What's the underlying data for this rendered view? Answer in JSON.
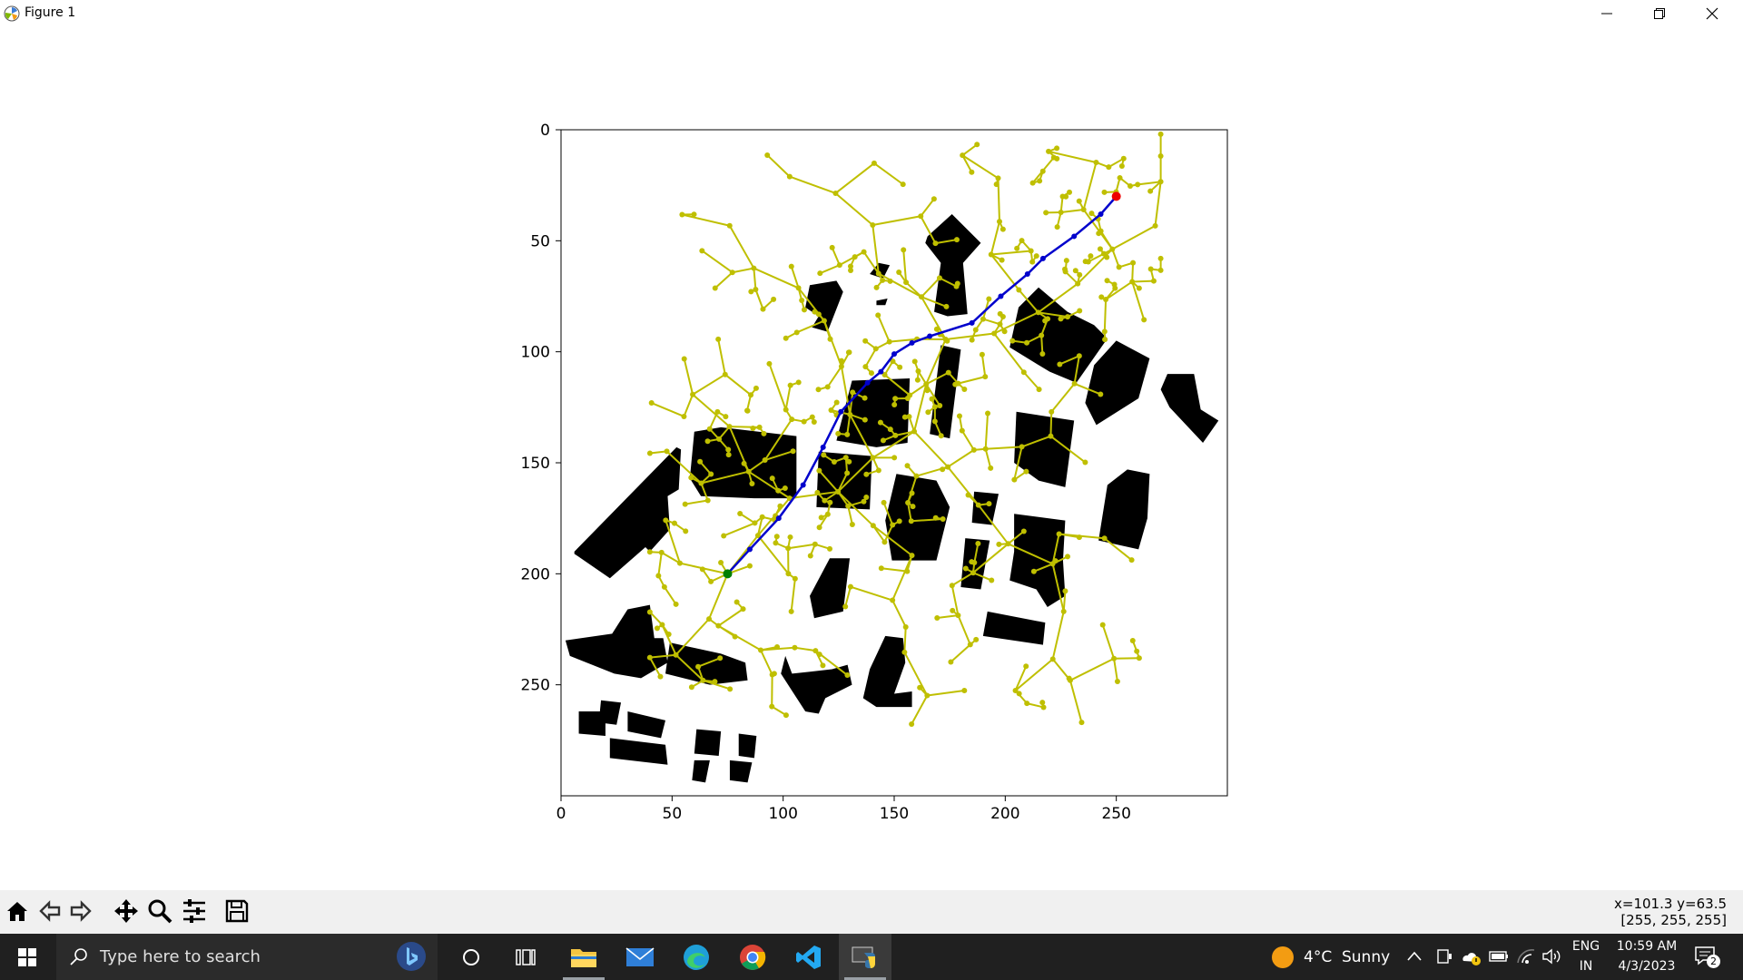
{
  "window": {
    "title": "Figure 1",
    "controls": [
      "minimize-icon",
      "restore-icon",
      "close-icon"
    ]
  },
  "chart_data": {
    "type": "scatter",
    "title": "",
    "xlabel": "",
    "ylabel": "",
    "xlim": [
      0,
      300
    ],
    "ylim": [
      300,
      0
    ],
    "y_inverted": true,
    "x_ticks": [
      0,
      50,
      100,
      150,
      200,
      250
    ],
    "y_ticks": [
      0,
      50,
      100,
      150,
      200,
      250
    ],
    "grid": false,
    "legend": "none",
    "colors": {
      "tree": "#bfbf00",
      "path": "#0000cc",
      "start": "#007f00",
      "goal": "#ee0000",
      "obstacle": "#000000"
    },
    "start": [
      75,
      200
    ],
    "goal": [
      250,
      30
    ],
    "path": [
      [
        75,
        200
      ],
      [
        85,
        189
      ],
      [
        98,
        175
      ],
      [
        109,
        160
      ],
      [
        118,
        143
      ],
      [
        126,
        127
      ],
      [
        138,
        114
      ],
      [
        144,
        109
      ],
      [
        150,
        101
      ],
      [
        158,
        96
      ],
      [
        166,
        93
      ],
      [
        185,
        87
      ],
      [
        198,
        75
      ],
      [
        210,
        65
      ],
      [
        217,
        58
      ],
      [
        231,
        48
      ],
      [
        243,
        38
      ],
      [
        250,
        30
      ]
    ],
    "obstacles": [
      [
        [
          6,
          190
        ],
        [
          52,
          143
        ],
        [
          54,
          144
        ],
        [
          53,
          162
        ],
        [
          48,
          165
        ],
        [
          49,
          180
        ],
        [
          40,
          190
        ],
        [
          38,
          188
        ],
        [
          22,
          202
        ],
        [
          6,
          191
        ]
      ],
      [
        [
          60,
          136
        ],
        [
          72,
          134
        ],
        [
          106,
          138
        ],
        [
          106,
          166
        ],
        [
          87,
          166
        ],
        [
          63,
          165
        ],
        [
          58,
          157
        ]
      ],
      [
        [
          116,
          145
        ],
        [
          140,
          147
        ],
        [
          139,
          171
        ],
        [
          115,
          170
        ]
      ],
      [
        [
          131,
          113
        ],
        [
          157,
          112
        ],
        [
          156,
          141
        ],
        [
          142,
          143
        ],
        [
          124,
          140
        ]
      ],
      [
        [
          142,
          77
        ],
        [
          147,
          76
        ],
        [
          146,
          79
        ],
        [
          142,
          79
        ]
      ],
      [
        [
          112,
          70
        ],
        [
          124,
          68
        ],
        [
          127,
          73
        ],
        [
          120,
          91
        ],
        [
          113,
          89
        ],
        [
          116,
          84
        ],
        [
          110,
          80
        ]
      ],
      [
        [
          143,
          60
        ],
        [
          148,
          61
        ],
        [
          145,
          67
        ],
        [
          139,
          65
        ]
      ],
      [
        [
          165,
          48
        ],
        [
          176,
          38
        ],
        [
          189,
          51
        ],
        [
          181,
          60
        ],
        [
          183,
          83
        ],
        [
          174,
          84
        ],
        [
          168,
          82
        ],
        [
          171,
          60
        ],
        [
          164,
          51
        ]
      ],
      [
        [
          171,
          97
        ],
        [
          180,
          99
        ],
        [
          175,
          139
        ],
        [
          166,
          137
        ]
      ],
      [
        [
          206,
          80
        ],
        [
          215,
          71
        ],
        [
          228,
          82
        ],
        [
          240,
          88
        ],
        [
          246,
          94
        ],
        [
          232,
          114
        ],
        [
          220,
          109
        ],
        [
          202,
          98
        ]
      ],
      [
        [
          250,
          95
        ],
        [
          265,
          103
        ],
        [
          260,
          121
        ],
        [
          241,
          133
        ],
        [
          236,
          123
        ],
        [
          240,
          106
        ]
      ],
      [
        [
          273,
          110
        ],
        [
          285,
          110
        ],
        [
          288,
          126
        ],
        [
          296,
          131
        ],
        [
          289,
          141
        ],
        [
          274,
          125
        ],
        [
          270,
          117
        ]
      ],
      [
        [
          205,
          127
        ],
        [
          231,
          131
        ],
        [
          227,
          161
        ],
        [
          215,
          158
        ],
        [
          204,
          150
        ]
      ],
      [
        [
          151,
          155
        ],
        [
          169,
          158
        ],
        [
          175,
          170
        ],
        [
          169,
          194
        ],
        [
          149,
          194
        ],
        [
          146,
          176
        ]
      ],
      [
        [
          186,
          163
        ],
        [
          197,
          164
        ],
        [
          194,
          178
        ],
        [
          185,
          177
        ]
      ],
      [
        [
          204,
          173
        ],
        [
          227,
          176
        ],
        [
          226,
          194
        ],
        [
          227,
          210
        ],
        [
          219,
          215
        ],
        [
          214,
          207
        ],
        [
          202,
          203
        ],
        [
          204,
          190
        ]
      ],
      [
        [
          182,
          184
        ],
        [
          193,
          185
        ],
        [
          189,
          207
        ],
        [
          180,
          206
        ]
      ],
      [
        [
          121,
          193
        ],
        [
          130,
          193
        ],
        [
          127,
          217
        ],
        [
          114,
          220
        ],
        [
          112,
          210
        ]
      ],
      [
        [
          2,
          230
        ],
        [
          23,
          227
        ],
        [
          30,
          216
        ],
        [
          40,
          214
        ],
        [
          42,
          229
        ],
        [
          46,
          229
        ],
        [
          48,
          240
        ],
        [
          36,
          247
        ],
        [
          24,
          245
        ],
        [
          4,
          237
        ]
      ],
      [
        [
          49,
          231
        ],
        [
          72,
          236
        ],
        [
          83,
          240
        ],
        [
          84,
          248
        ],
        [
          67,
          250
        ],
        [
          47,
          245
        ]
      ],
      [
        [
          101,
          237
        ],
        [
          104,
          245
        ],
        [
          122,
          243
        ],
        [
          129,
          241
        ],
        [
          131,
          250
        ],
        [
          119,
          256
        ],
        [
          116,
          263
        ],
        [
          110,
          262
        ],
        [
          99,
          245
        ]
      ],
      [
        [
          146,
          228
        ],
        [
          154,
          229
        ],
        [
          155,
          240
        ],
        [
          150,
          254
        ],
        [
          158,
          253
        ],
        [
          158,
          260
        ],
        [
          142,
          260
        ],
        [
          136,
          256
        ],
        [
          139,
          243
        ]
      ],
      [
        [
          192,
          217
        ],
        [
          218,
          222
        ],
        [
          217,
          232
        ],
        [
          190,
          228
        ]
      ],
      [
        [
          265,
          155
        ],
        [
          255,
          153
        ],
        [
          246,
          160
        ],
        [
          242,
          185
        ],
        [
          260,
          189
        ],
        [
          264,
          175
        ]
      ],
      [
        [
          8,
          262
        ],
        [
          20,
          262
        ],
        [
          20,
          273
        ],
        [
          8,
          272
        ]
      ],
      [
        [
          18,
          257
        ],
        [
          27,
          258
        ],
        [
          25,
          268
        ],
        [
          17,
          267
        ]
      ],
      [
        [
          22,
          274
        ],
        [
          47,
          277
        ],
        [
          48,
          286
        ],
        [
          22,
          283
        ]
      ],
      [
        [
          30,
          262
        ],
        [
          47,
          266
        ],
        [
          45,
          274
        ],
        [
          30,
          271
        ]
      ],
      [
        [
          61,
          270
        ],
        [
          72,
          271
        ],
        [
          71,
          282
        ],
        [
          60,
          281
        ]
      ],
      [
        [
          80,
          272
        ],
        [
          88,
          273
        ],
        [
          87,
          283
        ],
        [
          80,
          282
        ]
      ],
      [
        [
          76,
          284
        ],
        [
          86,
          285
        ],
        [
          84,
          294
        ],
        [
          76,
          293
        ]
      ],
      [
        [
          60,
          284
        ],
        [
          67,
          284
        ],
        [
          65,
          294
        ],
        [
          59,
          293
        ]
      ]
    ]
  },
  "toolbar": {
    "buttons": [
      "home-icon",
      "back-icon",
      "forward-icon",
      "pan-icon",
      "zoom-icon",
      "configure-subplots-icon",
      "save-icon"
    ],
    "coords_line1": "x=101.3 y=63.5",
    "coords_line2": "[255, 255, 255]"
  },
  "taskbar": {
    "search_placeholder": "Type here to search",
    "weather": "4°C  Sunny",
    "language_line1": "ENG",
    "language_line2": "IN",
    "time": "10:59 AM",
    "date": "4/3/2023",
    "notification_count": "2"
  }
}
